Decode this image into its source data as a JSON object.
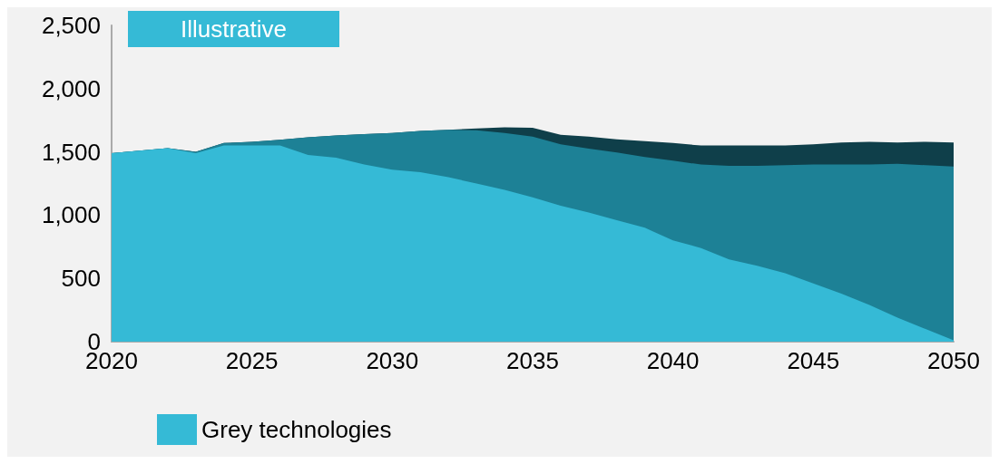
{
  "chart_data": {
    "type": "area",
    "stacked": true,
    "x": [
      2020,
      2021,
      2022,
      2023,
      2024,
      2025,
      2026,
      2027,
      2028,
      2029,
      2030,
      2031,
      2032,
      2033,
      2034,
      2035,
      2036,
      2037,
      2038,
      2039,
      2040,
      2041,
      2042,
      2043,
      2044,
      2045,
      2046,
      2047,
      2048,
      2049,
      2050
    ],
    "series": [
      {
        "name": "Grey technologies",
        "color": "#35bad6",
        "values": [
          1490,
          1510,
          1530,
          1490,
          1550,
          1550,
          1550,
          1475,
          1455,
          1400,
          1360,
          1340,
          1300,
          1250,
          1200,
          1140,
          1075,
          1020,
          960,
          900,
          800,
          740,
          650,
          600,
          540,
          460,
          380,
          290,
          190,
          100,
          10
        ]
      },
      {
        "color": "#1d8196",
        "values": [
          0,
          0,
          0,
          10,
          20,
          30,
          45,
          140,
          175,
          240,
          290,
          325,
          375,
          420,
          450,
          480,
          485,
          505,
          535,
          560,
          630,
          660,
          740,
          790,
          855,
          940,
          1020,
          1110,
          1215,
          1295,
          1375
        ]
      },
      {
        "color": "#0f3f4a",
        "values": [
          0,
          0,
          0,
          0,
          0,
          0,
          0,
          0,
          0,
          0,
          0,
          0,
          0,
          15,
          45,
          70,
          75,
          95,
          105,
          125,
          140,
          150,
          160,
          160,
          155,
          160,
          175,
          180,
          170,
          185,
          190
        ]
      }
    ],
    "xlim": [
      2020,
      2050
    ],
    "xticks": [
      2020,
      2025,
      2030,
      2035,
      2040,
      2045,
      2050
    ],
    "ylim": [
      0,
      2500
    ],
    "yticks": [
      0,
      500,
      {
        "value": 1000,
        "label": "1,000"
      },
      {
        "value": 1500,
        "label": "1,500"
      },
      {
        "value": 2000,
        "label": "2,000"
      },
      {
        "value": 2500,
        "label": "2,500"
      }
    ],
    "annotations": [
      "Illustrative"
    ],
    "grid": false,
    "legend": "bottom left"
  }
}
